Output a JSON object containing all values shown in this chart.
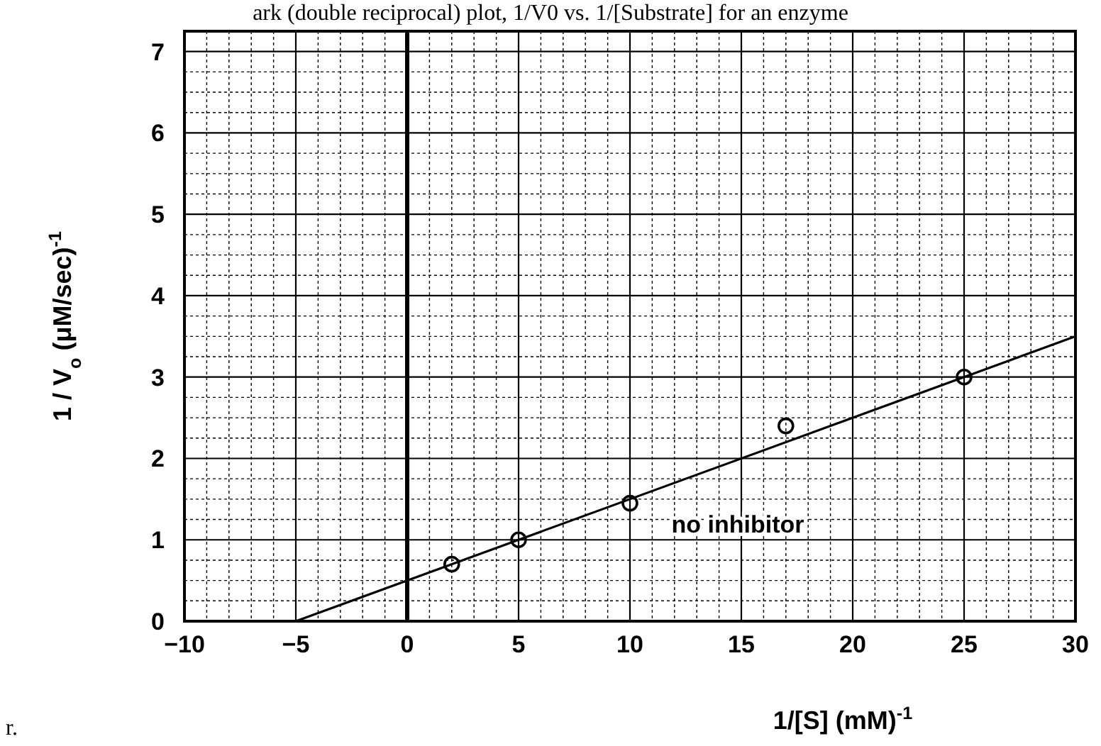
{
  "chart_data": {
    "type": "scatter",
    "title": "ark (double reciprocal) plot, 1/V0 vs. 1/[Substrate] for an enzyme",
    "xlabel": "1/[S] (mM)$^{-1}$",
    "ylabel": "1 / V$_{o}$ (μM/sec)$^{-1}$",
    "marker": "circle",
    "grid": true,
    "series": [
      {
        "color": "#000000",
        "x": [
          2,
          5,
          10,
          17,
          25
        ],
        "values": [
          0.7,
          1.0,
          1.45,
          2.4,
          3.0
        ]
      },
      {
        "type": "line",
        "name": "no inhibitor",
        "color": "#000000",
        "x": [
          -5,
          30
        ],
        "values": [
          0,
          3.5
        ],
        "marker": "none"
      }
    ],
    "xlim": [
      -10,
      30
    ],
    "ylim": [
      0,
      7.25
    ],
    "xticks": [
      {
        "value": -10,
        "label": "−10"
      },
      {
        "value": -9,
        "label": null
      },
      {
        "value": -8,
        "label": null
      },
      {
        "value": -7,
        "label": null
      },
      {
        "value": -6,
        "label": null
      },
      {
        "value": -5,
        "label": "−5"
      },
      {
        "value": -4,
        "label": null
      },
      {
        "value": -3,
        "label": null
      },
      {
        "value": -2,
        "label": null
      },
      {
        "value": -1,
        "label": null
      },
      0,
      {
        "value": 1,
        "label": null
      },
      {
        "value": 2,
        "label": null
      },
      {
        "value": 3,
        "label": null
      },
      {
        "value": 4,
        "label": null
      },
      5,
      {
        "value": 6,
        "label": null
      },
      {
        "value": 7,
        "label": null
      },
      {
        "value": 8,
        "label": null
      },
      {
        "value": 9,
        "label": null
      },
      10,
      {
        "value": 11,
        "label": null
      },
      {
        "value": 12,
        "label": null
      },
      {
        "value": 13,
        "label": null
      },
      {
        "value": 14,
        "label": null
      },
      15,
      {
        "value": 16,
        "label": null
      },
      {
        "value": 17,
        "label": null
      },
      {
        "value": 18,
        "label": null
      },
      {
        "value": 19,
        "label": null
      },
      20,
      {
        "value": 21,
        "label": null
      },
      {
        "value": 22,
        "label": null
      },
      {
        "value": 23,
        "label": null
      },
      {
        "value": 24,
        "label": null
      },
      25,
      {
        "value": 26,
        "label": null
      },
      {
        "value": 27,
        "label": null
      },
      {
        "value": 28,
        "label": null
      },
      {
        "value": 29,
        "label": null
      },
      30
    ],
    "yticks": [
      0,
      {
        "value": 0.25,
        "label": null
      },
      {
        "value": 0.5,
        "label": null
      },
      {
        "value": 0.75,
        "label": null
      },
      1,
      {
        "value": 1.25,
        "label": null
      },
      {
        "value": 1.5,
        "label": null
      },
      {
        "value": 1.75,
        "label": null
      },
      2,
      {
        "value": 2.25,
        "label": null
      },
      {
        "value": 2.5,
        "label": null
      },
      {
        "value": 2.75,
        "label": null
      },
      3,
      {
        "value": 3.25,
        "label": null
      },
      {
        "value": 3.5,
        "label": null
      },
      {
        "value": 3.75,
        "label": null
      },
      4,
      {
        "value": 4.25,
        "label": null
      },
      {
        "value": 4.5,
        "label": null
      },
      {
        "value": 4.75,
        "label": null
      },
      5,
      {
        "value": 5.25,
        "label": null
      },
      {
        "value": 5.5,
        "label": null
      },
      {
        "value": 5.75,
        "label": null
      },
      6,
      {
        "value": 6.25,
        "label": null
      },
      {
        "value": 6.5,
        "label": null
      },
      {
        "value": 6.75,
        "label": null
      },
      7,
      {
        "value": 7.25,
        "label": null
      }
    ],
    "ref_lines": [
      {
        "axis": "x",
        "value": 0,
        "color": "#000000"
      }
    ],
    "annotations": [
      "r."
    ]
  }
}
